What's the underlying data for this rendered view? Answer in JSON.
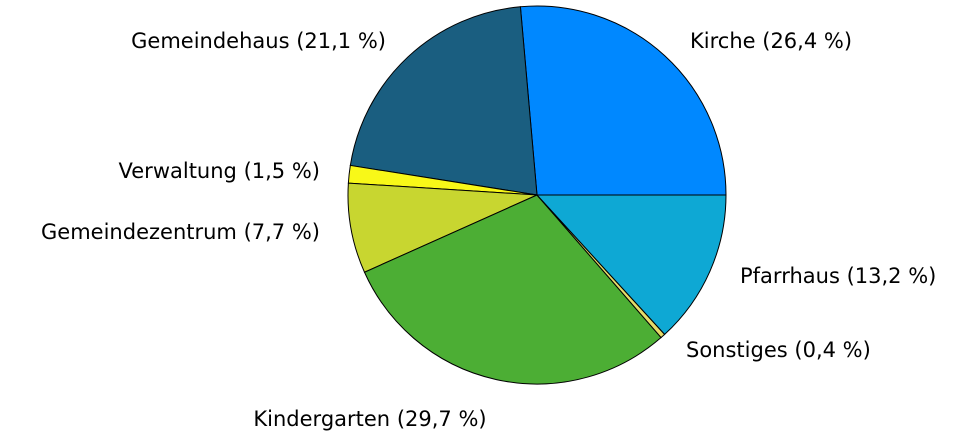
{
  "chart_data": {
    "type": "pie",
    "categories": [
      "Kirche",
      "Gemeindehaus",
      "Verwaltung",
      "Gemeindezentrum",
      "Kindergarten",
      "Sonstiges",
      "Pfarrhaus"
    ],
    "values": [
      26.4,
      21.1,
      1.5,
      7.7,
      29.7,
      0.4,
      13.2
    ],
    "value_labels": [
      "(26,4 %)",
      "(21,1 %)",
      "(1,5 %)",
      "(7,7 %)",
      "(29,7 %)",
      "(0,4 %)",
      "(13,2 %)"
    ],
    "colors": [
      "#0088ff",
      "#1a5e80",
      "#f8f818",
      "#c8d630",
      "#4cae34",
      "#e6dc6a",
      "#0ea8d4"
    ]
  }
}
